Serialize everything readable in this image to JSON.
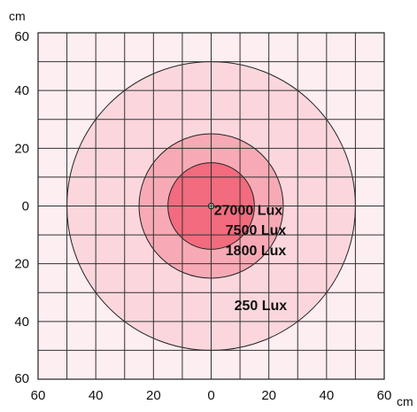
{
  "chart_data": {
    "type": "isolux-diagram",
    "x_unit": "cm",
    "y_unit": "cm",
    "xlim": [
      -60,
      60
    ],
    "ylim": [
      -60,
      60
    ],
    "grid": true,
    "grid_step": 10,
    "x_tick_labels": [
      "60",
      "40",
      "20",
      "0",
      "20",
      "40",
      "60"
    ],
    "x_tick_values": [
      -60,
      -40,
      -20,
      0,
      20,
      40,
      60
    ],
    "y_tick_labels": [
      "60",
      "40",
      "20",
      "0",
      "20",
      "40",
      "60"
    ],
    "y_tick_values": [
      60,
      40,
      20,
      0,
      -20,
      -40,
      -60
    ],
    "center": [
      0,
      0
    ],
    "zones": [
      {
        "label": "250 Lux",
        "radius": 50,
        "color": "#fbd7dd",
        "label_pos": [
          8,
          -36
        ]
      },
      {
        "label": "1800 Lux",
        "radius": 25,
        "color": "#f7aab5",
        "label_pos": [
          5,
          -17
        ]
      },
      {
        "label": "7500 Lux",
        "radius": 15,
        "color": "#f26b7e",
        "label_pos": [
          5,
          -10
        ]
      },
      {
        "label": "27000 Lux",
        "radius": 0,
        "color": "#333333",
        "label_pos": [
          1,
          -3
        ]
      }
    ],
    "background_color": "#fdeef1",
    "grid_color": "#333333"
  }
}
